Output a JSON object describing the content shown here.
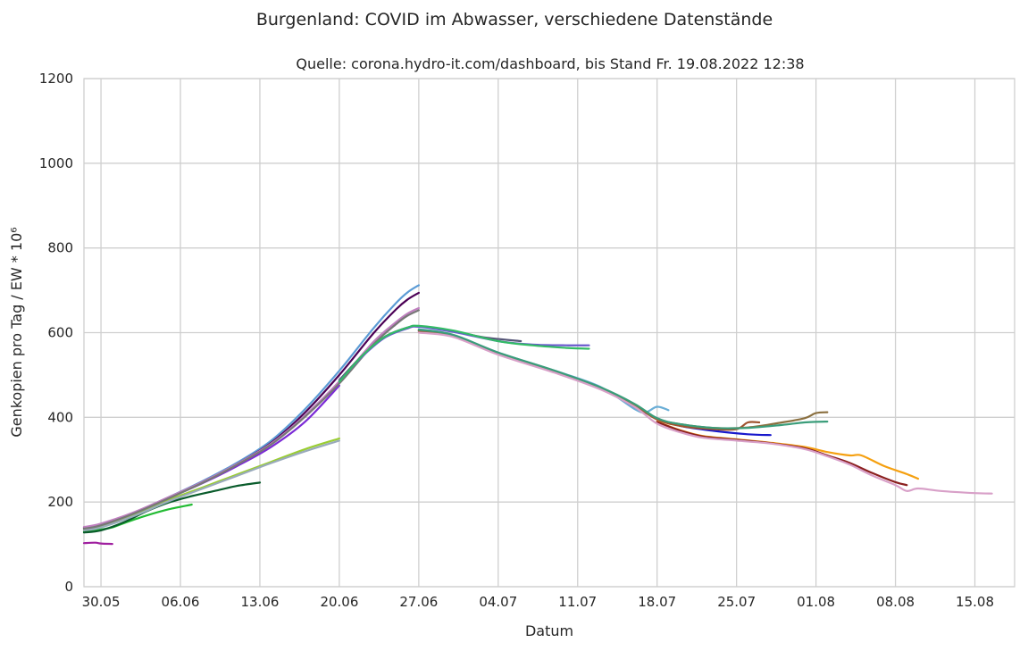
{
  "chart_data": {
    "type": "line",
    "title": "Burgenland: COVID im Abwasser, verschiedene Datenstände",
    "subtitle": "Quelle: corona.hydro-it.com/dashboard, bis Stand Fr. 19.08.2022 12:38",
    "xlabel": "Datum",
    "ylabel": "Genkopien pro Tag / EW * 10⁶",
    "ylim": [
      0,
      1200
    ],
    "xlim_days": [
      -1.5,
      80.5
    ],
    "x_reference_date": "2022-05-30",
    "grid": true,
    "y_ticks": [
      0,
      200,
      400,
      600,
      800,
      1000,
      1200
    ],
    "x_ticks": [
      {
        "day": 0,
        "label": "30.05"
      },
      {
        "day": 7,
        "label": "06.06"
      },
      {
        "day": 14,
        "label": "13.06"
      },
      {
        "day": 21,
        "label": "20.06"
      },
      {
        "day": 28,
        "label": "27.06"
      },
      {
        "day": 35,
        "label": "04.07"
      },
      {
        "day": 42,
        "label": "11.07"
      },
      {
        "day": 49,
        "label": "18.07"
      },
      {
        "day": 56,
        "label": "25.07"
      },
      {
        "day": 63,
        "label": "01.08"
      },
      {
        "day": 70,
        "label": "08.08"
      },
      {
        "day": 77,
        "label": "15.08"
      }
    ],
    "series": [
      {
        "color": "#a020a0",
        "points": [
          [
            -1.5,
            103
          ],
          [
            -0.5,
            104
          ],
          [
            0.0,
            102
          ],
          [
            1.0,
            101
          ]
        ]
      },
      {
        "color": "#22bb33",
        "points": [
          [
            -1.5,
            130
          ],
          [
            0,
            135
          ],
          [
            1,
            140
          ],
          [
            2,
            150
          ],
          [
            4,
            168
          ],
          [
            6,
            183
          ],
          [
            8,
            194
          ]
        ]
      },
      {
        "color": "#0a5c2c",
        "points": [
          [
            -1.5,
            128
          ],
          [
            0,
            133
          ],
          [
            2,
            152
          ],
          [
            4,
            178
          ],
          [
            6,
            199
          ],
          [
            8,
            214
          ],
          [
            10,
            226
          ],
          [
            12,
            238
          ],
          [
            14,
            246
          ]
        ]
      },
      {
        "color": "#9acd32",
        "points": [
          [
            -1.5,
            135
          ],
          [
            0,
            142
          ],
          [
            3,
            170
          ],
          [
            6,
            205
          ],
          [
            9,
            235
          ],
          [
            12,
            265
          ],
          [
            15,
            295
          ],
          [
            18,
            325
          ],
          [
            21,
            350
          ]
        ]
      },
      {
        "color": "#9ab",
        "points": [
          [
            -1.5,
            133
          ],
          [
            0,
            140
          ],
          [
            3,
            168
          ],
          [
            6,
            202
          ],
          [
            9,
            232
          ],
          [
            12,
            262
          ],
          [
            15,
            292
          ],
          [
            18,
            320
          ],
          [
            21,
            345
          ]
        ]
      },
      {
        "color": "#7b2ad6",
        "points": [
          [
            -1.5,
            138
          ],
          [
            0,
            146
          ],
          [
            3,
            175
          ],
          [
            6,
            210
          ],
          [
            9,
            245
          ],
          [
            12,
            285
          ],
          [
            15,
            330
          ],
          [
            18,
            390
          ],
          [
            21,
            475
          ]
        ]
      },
      {
        "color": "#5b9bd5",
        "points": [
          [
            -1.5,
            140
          ],
          [
            0,
            148
          ],
          [
            3,
            176
          ],
          [
            6,
            212
          ],
          [
            9,
            250
          ],
          [
            12,
            293
          ],
          [
            15,
            345
          ],
          [
            18,
            420
          ],
          [
            21,
            510
          ],
          [
            24,
            610
          ],
          [
            26,
            670
          ],
          [
            27,
            695
          ],
          [
            28,
            712
          ]
        ]
      },
      {
        "color": "#4b0055",
        "points": [
          [
            -1.5,
            139
          ],
          [
            0,
            147
          ],
          [
            3,
            175
          ],
          [
            6,
            211
          ],
          [
            9,
            248
          ],
          [
            12,
            290
          ],
          [
            15,
            340
          ],
          [
            18,
            412
          ],
          [
            21,
            500
          ],
          [
            24,
            598
          ],
          [
            26,
            655
          ],
          [
            27,
            678
          ],
          [
            28,
            694
          ]
        ]
      },
      {
        "color": "#c080c0",
        "points": [
          [
            -1.5,
            141
          ],
          [
            0,
            149
          ],
          [
            3,
            177
          ],
          [
            6,
            212
          ],
          [
            9,
            248
          ],
          [
            12,
            290
          ],
          [
            15,
            338
          ],
          [
            18,
            405
          ],
          [
            21,
            485
          ],
          [
            24,
            578
          ],
          [
            26,
            625
          ],
          [
            27,
            645
          ],
          [
            28,
            658
          ]
        ]
      },
      {
        "color": "#777777",
        "points": [
          [
            -1.5,
            137
          ],
          [
            0,
            145
          ],
          [
            3,
            174
          ],
          [
            6,
            209
          ],
          [
            9,
            246
          ],
          [
            12,
            288
          ],
          [
            15,
            336
          ],
          [
            18,
            402
          ],
          [
            21,
            480
          ],
          [
            24,
            572
          ],
          [
            26,
            620
          ],
          [
            27,
            640
          ],
          [
            28,
            653
          ]
        ]
      },
      {
        "color": "#555577",
        "points": [
          [
            21,
            488
          ],
          [
            23,
            545
          ],
          [
            25,
            590
          ],
          [
            27,
            612
          ],
          [
            28,
            615
          ],
          [
            30,
            608
          ],
          [
            32,
            598
          ],
          [
            34,
            588
          ],
          [
            37,
            580
          ]
        ]
      },
      {
        "color": "#6a5acd",
        "points": [
          [
            21,
            485
          ],
          [
            23,
            543
          ],
          [
            25,
            588
          ],
          [
            27,
            610
          ],
          [
            28,
            614
          ],
          [
            31,
            602
          ],
          [
            35,
            580
          ],
          [
            38,
            572
          ],
          [
            41,
            570
          ],
          [
            43,
            570
          ]
        ]
      },
      {
        "color": "#33bb66",
        "points": [
          [
            21,
            484
          ],
          [
            23,
            545
          ],
          [
            25,
            590
          ],
          [
            27,
            612
          ],
          [
            28,
            616
          ],
          [
            31,
            605
          ],
          [
            35,
            580
          ],
          [
            38,
            570
          ],
          [
            41,
            564
          ],
          [
            43,
            562
          ]
        ]
      },
      {
        "color": "#6aaed6",
        "points": [
          [
            28,
            608
          ],
          [
            31,
            595
          ],
          [
            35,
            553
          ],
          [
            40,
            510
          ],
          [
            44,
            472
          ],
          [
            47,
            420
          ],
          [
            48,
            412
          ],
          [
            49,
            425
          ],
          [
            50,
            417
          ]
        ]
      },
      {
        "color": "#1818cc",
        "points": [
          [
            28,
            604
          ],
          [
            31,
            592
          ],
          [
            35,
            550
          ],
          [
            40,
            508
          ],
          [
            44,
            470
          ],
          [
            47,
            425
          ],
          [
            49,
            398
          ],
          [
            51,
            380
          ],
          [
            54,
            368
          ],
          [
            57,
            360
          ],
          [
            59,
            358
          ]
        ]
      },
      {
        "color": "#a0522d",
        "points": [
          [
            28,
            604
          ],
          [
            31,
            592
          ],
          [
            35,
            550
          ],
          [
            40,
            508
          ],
          [
            44,
            468
          ],
          [
            47,
            428
          ],
          [
            49,
            395
          ],
          [
            51,
            380
          ],
          [
            54,
            372
          ],
          [
            56,
            372
          ],
          [
            57,
            388
          ],
          [
            58,
            388
          ]
        ]
      },
      {
        "color": "#8b7040",
        "points": [
          [
            28,
            606
          ],
          [
            31,
            594
          ],
          [
            35,
            552
          ],
          [
            40,
            509
          ],
          [
            44,
            470
          ],
          [
            47,
            430
          ],
          [
            49,
            397
          ],
          [
            51,
            384
          ],
          [
            54,
            375
          ],
          [
            57,
            376
          ],
          [
            60,
            388
          ],
          [
            62,
            398
          ],
          [
            63,
            410
          ],
          [
            64,
            412
          ]
        ]
      },
      {
        "color": "#3a9d7a",
        "points": [
          [
            28,
            607
          ],
          [
            31,
            595
          ],
          [
            35,
            553
          ],
          [
            40,
            510
          ],
          [
            44,
            471
          ],
          [
            47,
            432
          ],
          [
            49,
            398
          ],
          [
            51,
            384
          ],
          [
            54,
            375
          ],
          [
            57,
            375
          ],
          [
            60,
            382
          ],
          [
            62,
            388
          ],
          [
            64,
            390
          ]
        ]
      },
      {
        "color": "#f5a010",
        "points": [
          [
            49,
            390
          ],
          [
            51,
            370
          ],
          [
            53,
            356
          ],
          [
            56,
            348
          ],
          [
            59,
            340
          ],
          [
            62,
            330
          ],
          [
            64,
            318
          ],
          [
            66,
            310
          ],
          [
            67,
            310
          ],
          [
            69,
            285
          ],
          [
            71,
            266
          ],
          [
            72,
            255
          ]
        ]
      },
      {
        "color": "#8b2020",
        "points": [
          [
            49,
            389
          ],
          [
            51,
            369
          ],
          [
            53,
            355
          ],
          [
            56,
            347
          ],
          [
            59,
            339
          ],
          [
            62,
            327
          ],
          [
            64,
            310
          ],
          [
            66,
            292
          ],
          [
            68,
            268
          ],
          [
            70,
            247
          ],
          [
            71,
            240
          ]
        ]
      },
      {
        "color": "#d8a0c8",
        "points": [
          [
            28,
            600
          ],
          [
            31,
            590
          ],
          [
            35,
            548
          ],
          [
            40,
            505
          ],
          [
            44,
            466
          ],
          [
            47,
            425
          ],
          [
            49,
            385
          ],
          [
            51,
            365
          ],
          [
            53,
            352
          ],
          [
            56,
            345
          ],
          [
            59,
            338
          ],
          [
            62,
            325
          ],
          [
            64,
            308
          ],
          [
            66,
            288
          ],
          [
            68,
            262
          ],
          [
            70,
            240
          ],
          [
            71,
            226
          ],
          [
            72,
            232
          ],
          [
            74,
            226
          ],
          [
            77,
            221
          ],
          [
            78.5,
            220
          ]
        ]
      }
    ]
  }
}
